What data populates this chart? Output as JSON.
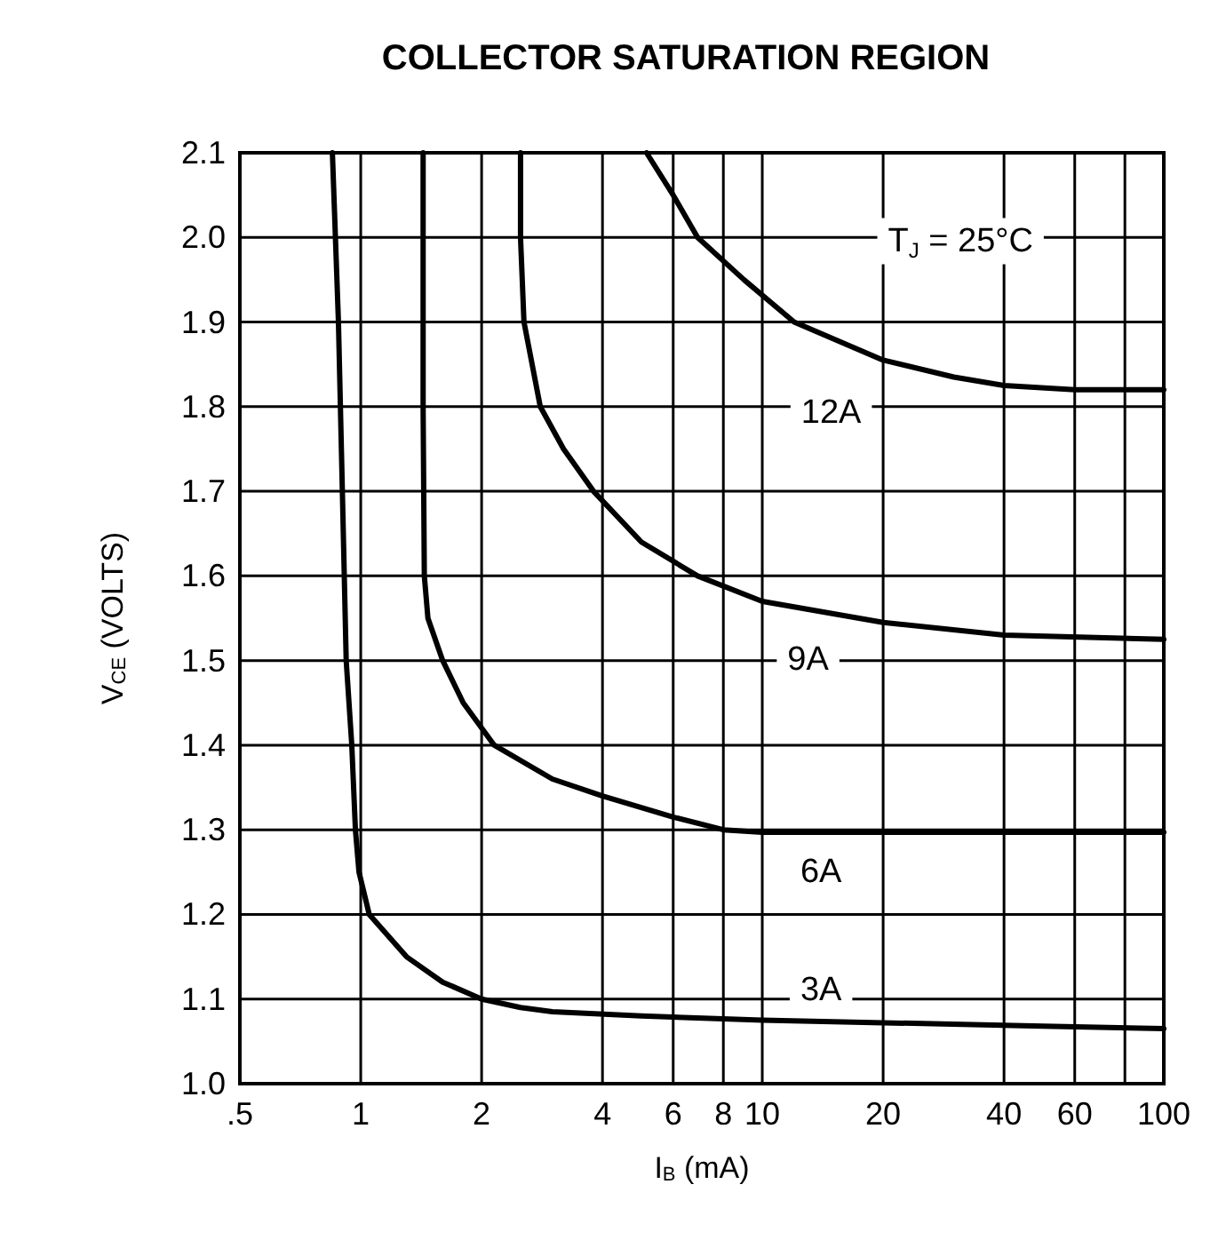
{
  "chart_data": {
    "type": "line",
    "title": "COLLECTOR SATURATION REGION",
    "xlabel": "I$_{B}$ (mA)",
    "ylabel": "V$_{CE}$ (VOLTS)",
    "log": "x",
    "grid": true,
    "marker": "none",
    "line_style": "solid",
    "xlim": [
      0.5,
      100
    ],
    "xticks": [
      {
        "value": 0.5,
        "label": ".5"
      },
      1,
      2,
      4,
      6,
      8,
      10,
      20,
      40,
      60,
      {
        "value": 80,
        "label": null
      },
      100
    ],
    "ylim": [
      1.0,
      2.1
    ],
    "yticks": [
      {
        "value": 1.0,
        "label": "1.0"
      },
      1.1,
      1.2,
      1.3,
      1.4,
      1.5,
      1.6,
      1.7,
      1.8,
      1.9,
      {
        "value": 2.0,
        "label": "2.0"
      },
      2.1
    ],
    "series": [
      {
        "color": "#000000",
        "x": [
          0.85,
          0.88,
          0.9,
          0.92,
          0.95,
          0.97,
          0.99,
          1.05,
          1.3,
          1.6,
          2,
          2.5,
          3,
          5,
          10,
          20,
          50,
          100
        ],
        "values": [
          2.1,
          1.9,
          1.7,
          1.5,
          1.4,
          1.3,
          1.25,
          1.2,
          1.15,
          1.12,
          1.1,
          1.09,
          1.085,
          1.08,
          1.075,
          1.072,
          1.068,
          1.065
        ]
      },
      {
        "color": "#000000",
        "x": [
          1.43,
          1.43,
          1.44,
          1.47,
          1.6,
          1.8,
          2.15,
          3,
          4,
          6,
          8,
          10,
          100
        ],
        "values": [
          2.1,
          1.8,
          1.6,
          1.55,
          1.5,
          1.45,
          1.4,
          1.36,
          1.34,
          1.315,
          1.3,
          1.297,
          1.297
        ]
      },
      {
        "color": "#000000",
        "x": [
          2.5,
          2.5,
          2.55,
          2.8,
          3.2,
          3.8,
          5,
          6.9,
          10,
          20,
          40,
          100
        ],
        "values": [
          2.1,
          2.0,
          1.9,
          1.8,
          1.75,
          1.7,
          1.64,
          1.6,
          1.57,
          1.545,
          1.53,
          1.525
        ]
      },
      {
        "color": "#000000",
        "x": [
          5.15,
          6,
          6.9,
          9,
          12,
          20,
          30,
          40,
          60,
          100
        ],
        "values": [
          2.1,
          2.05,
          2.0,
          1.95,
          1.9,
          1.855,
          1.835,
          1.825,
          1.82,
          1.82
        ]
      }
    ],
    "annotations": [
      "T$_{J}$ = 25°C",
      "12A",
      "9A",
      "6A",
      "3A"
    ]
  }
}
